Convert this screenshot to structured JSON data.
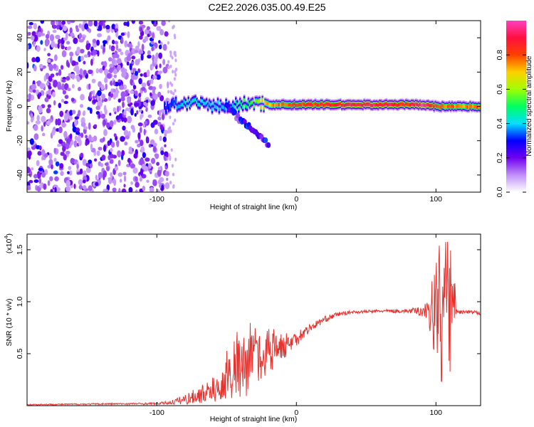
{
  "title": "C2E2.2026.035.00.49.E25",
  "chart_data": [
    {
      "type": "heatmap",
      "name": "spectrogram",
      "xlabel": "Height of straight line (km)",
      "ylabel": "Frequency (Hz)",
      "xlim": [
        -193,
        132
      ],
      "ylim": [
        -50,
        50
      ],
      "xticks": [
        -100,
        0,
        100
      ],
      "xtick_labels": [
        "-100",
        "0",
        "100"
      ],
      "yticks": [
        -40,
        -20,
        0,
        20,
        40
      ],
      "ytick_labels": [
        "-40",
        "-20",
        "0",
        "20",
        "40"
      ],
      "noise_region_x": [
        -193,
        -92
      ],
      "frequency_track": {
        "x": [
          -95,
          -80,
          -65,
          -50,
          -40,
          -35,
          -30,
          -20,
          -10,
          0,
          20,
          40,
          60,
          80,
          90,
          100,
          110,
          120,
          132
        ],
        "freq": [
          0,
          2,
          1,
          0,
          1,
          2,
          2,
          1,
          1,
          1,
          1,
          1,
          1,
          1,
          1,
          0,
          0,
          0,
          0
        ],
        "amplitude": [
          0.3,
          0.45,
          0.45,
          0.4,
          0.5,
          0.55,
          0.6,
          0.75,
          0.8,
          0.85,
          0.9,
          0.95,
          0.95,
          0.9,
          1.0,
          0.85,
          0.8,
          0.8,
          0.8
        ]
      },
      "descending_branch": {
        "x": [
          -50,
          -40,
          -30,
          -20
        ],
        "freq": [
          0,
          -8,
          -14,
          -22
        ]
      }
    },
    {
      "type": "line",
      "name": "snr",
      "xlabel": "Height of straight line (km)",
      "ylabel": "SNR (10 * v/v)",
      "yscale_label": "(x10",
      "yscale_exponent": "4",
      "xlim": [
        -193,
        132
      ],
      "ylim": [
        0,
        1.65
      ],
      "xticks": [
        -100,
        0,
        100
      ],
      "xtick_labels": [
        "-100",
        "0",
        "100"
      ],
      "yticks": [
        0.5,
        1.0,
        1.5
      ],
      "ytick_labels": [
        "0.5",
        "1.0",
        "1.5"
      ],
      "series": [
        {
          "name": "SNR",
          "color": "#e8322e",
          "x": [
            -193,
            -100,
            -90,
            -80,
            -70,
            -60,
            -50,
            -45,
            -40,
            -35,
            -30,
            -25,
            -20,
            -10,
            0,
            10,
            20,
            30,
            40,
            60,
            80,
            90,
            95,
            100,
            105,
            110,
            115,
            120,
            132
          ],
          "y": [
            0.01,
            0.02,
            0.03,
            0.06,
            0.1,
            0.15,
            0.25,
            0.3,
            0.35,
            0.4,
            0.45,
            0.45,
            0.5,
            0.55,
            0.65,
            0.75,
            0.83,
            0.88,
            0.9,
            0.91,
            0.91,
            0.91,
            0.93,
            0.9,
            0.92,
            0.9,
            0.9,
            0.9,
            0.89
          ],
          "noise": [
            0.005,
            0.01,
            0.02,
            0.05,
            0.08,
            0.12,
            0.2,
            0.25,
            0.3,
            0.3,
            0.25,
            0.2,
            0.2,
            0.12,
            0.08,
            0.04,
            0.03,
            0.02,
            0.015,
            0.015,
            0.02,
            0.05,
            0.15,
            0.6,
            0.7,
            0.7,
            0.02,
            0.02,
            0.02
          ]
        }
      ]
    }
  ],
  "colorbar": {
    "label": "Normalized spectral amplitude",
    "range": [
      0,
      1
    ],
    "ticks": [
      0,
      0.2,
      0.4,
      0.6,
      0.8
    ],
    "tick_labels": [
      "0.0",
      "0.2",
      "0.4",
      "0.6",
      "0.8"
    ],
    "colors": [
      "#ffffff",
      "#c090f8",
      "#7000f0",
      "#0000ff",
      "#00e0ff",
      "#00ff60",
      "#a0ff00",
      "#ffd000",
      "#ff4000",
      "#ff1040",
      "#ff40c0"
    ]
  }
}
